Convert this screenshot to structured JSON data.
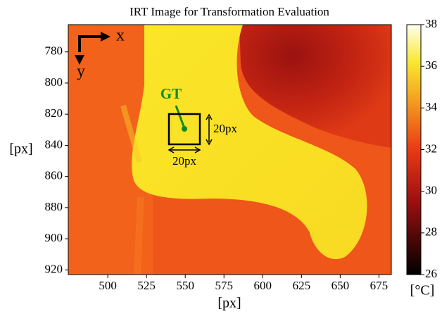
{
  "chart_data": {
    "type": "image",
    "title": "IRT Image for Transformation Evaluation",
    "x_label": "[px]",
    "y_label": "[px]",
    "xlim": [
      474.5,
      683
    ],
    "xticks": [
      500,
      525,
      550,
      575,
      600,
      625,
      650,
      675
    ],
    "ylim": [
      923,
      762.5
    ],
    "yticks": [
      780,
      800,
      820,
      840,
      860,
      880,
      900,
      920
    ],
    "colorbar": {
      "label": "[°C]",
      "lim": [
        26,
        38
      ],
      "ticks": [
        26,
        28,
        30,
        32,
        34,
        36,
        38
      ]
    },
    "annotations": {
      "x_axis": "x",
      "y_axis": "y",
      "marker": "GT",
      "width": "20px",
      "height": "20px"
    }
  }
}
